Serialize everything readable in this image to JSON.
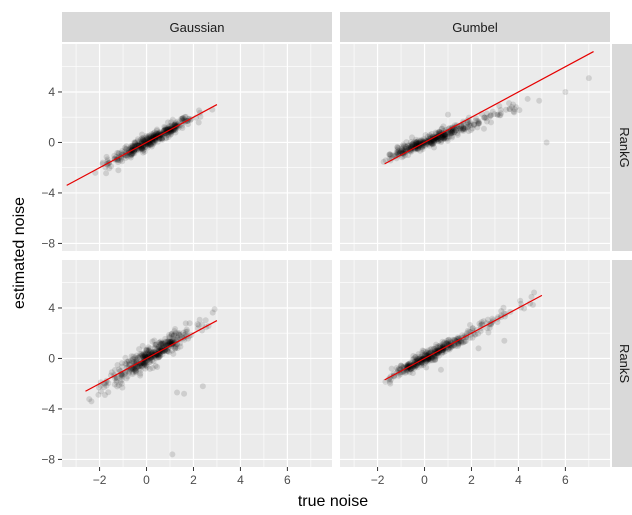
{
  "chart_data": {
    "type": "scatter",
    "xlabel": "true noise",
    "ylabel": "estimated noise",
    "columns": [
      "Gaussian",
      "Gumbel"
    ],
    "rows": [
      "RankG",
      "RankS"
    ],
    "xlim": [
      -3.6,
      7.9
    ],
    "ylim": [
      -8.6,
      7.8
    ],
    "x_ticks": [
      -2,
      0,
      2,
      4,
      6
    ],
    "y_ticks": [
      -8,
      -4,
      0,
      4
    ],
    "colors": {
      "panel_bg": "#ebebeb",
      "strip_bg": "#d9d9d9",
      "grid": "#ffffff",
      "points": "#000000",
      "fit_line": "#e60000"
    },
    "panels": [
      {
        "column": "Gaussian",
        "row": "RankG",
        "fit_line": [
          [
            -3.4,
            -3.4
          ],
          [
            3.0,
            3.0
          ]
        ],
        "cloud": {
          "x_range": [
            -2.8,
            3.2
          ],
          "slope": 1.0,
          "spread": 0.25
        },
        "outliers": [
          [
            -1.2,
            -2.2
          ],
          [
            2.8,
            2.6
          ]
        ]
      },
      {
        "column": "Gumbel",
        "row": "RankG",
        "fit_line": [
          [
            -1.7,
            -1.7
          ],
          [
            7.2,
            7.2
          ]
        ],
        "cloud": {
          "x_range": [
            -1.8,
            5.0
          ],
          "slope": 0.72,
          "spread": 0.25
        },
        "outliers": [
          [
            1.0,
            2.2
          ],
          [
            5.2,
            0.0
          ],
          [
            6.0,
            4.0
          ],
          [
            7.0,
            5.1
          ],
          [
            3.9,
            2.8
          ]
        ]
      },
      {
        "column": "Gaussian",
        "row": "RankS",
        "fit_line": [
          [
            -2.6,
            -2.6
          ],
          [
            3.0,
            3.0
          ]
        ],
        "cloud": {
          "x_range": [
            -2.6,
            3.0
          ],
          "slope": 1.15,
          "spread": 0.4
        },
        "outliers": [
          [
            1.3,
            -2.7
          ],
          [
            1.6,
            -2.8
          ],
          [
            2.4,
            -2.2
          ],
          [
            1.1,
            -7.6
          ],
          [
            2.9,
            3.9
          ]
        ]
      },
      {
        "column": "Gumbel",
        "row": "RankS",
        "fit_line": [
          [
            -1.7,
            -1.7
          ],
          [
            5.0,
            5.0
          ]
        ],
        "cloud": {
          "x_range": [
            -1.8,
            5.0
          ],
          "slope": 1.0,
          "spread": 0.25
        },
        "outliers": [
          [
            3.4,
            1.4
          ],
          [
            0.7,
            -0.9
          ],
          [
            2.3,
            0.8
          ]
        ]
      }
    ]
  }
}
